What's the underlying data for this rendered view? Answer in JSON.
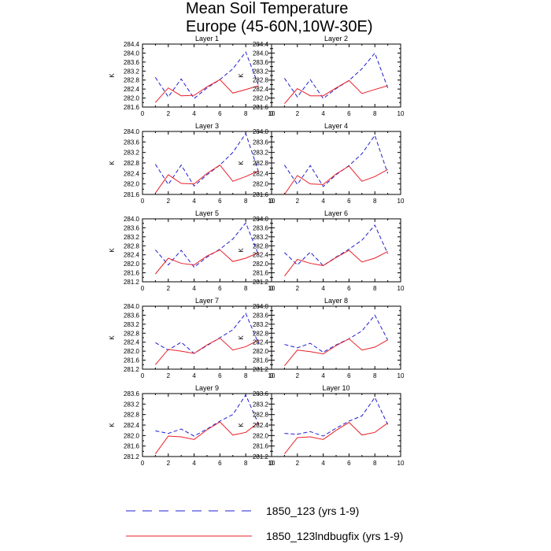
{
  "chart_data": {
    "type": "line",
    "title_line1": "Mean Soil Temperature",
    "title_line2": "Europe (45-60N,10W-30E)",
    "ylabel": "K",
    "xlim": [
      0,
      10
    ],
    "xticks": [
      "0",
      "2",
      "4",
      "6",
      "8",
      "10"
    ],
    "x": [
      1,
      2,
      3,
      4,
      5,
      6,
      7,
      8,
      9
    ],
    "legend": [
      {
        "name": "1850_123 (yrs 1-9)",
        "color": "#1f1fd0",
        "style": "dashed"
      },
      {
        "name": "1850_123lndbugfix (yrs 1-9)",
        "color": "#e8202a",
        "style": "solid"
      }
    ],
    "panels": [
      {
        "title": "Layer 1",
        "ylim": [
          281.6,
          284.4
        ],
        "yticks": [
          "281.6",
          "282.0",
          "282.4",
          "282.8",
          "283.2",
          "283.6",
          "284.0",
          "284.4"
        ],
        "series": [
          {
            "name": "1850_123 (yrs 1-9)",
            "values": [
              282.92,
              282.05,
              282.85,
              281.98,
              282.45,
              282.82,
              283.3,
              284.05,
              282.55
            ]
          },
          {
            "name": "1850_123lndbugfix (yrs 1-9)",
            "values": [
              281.8,
              282.45,
              282.1,
              282.12,
              282.5,
              282.82,
              282.22,
              282.38,
              282.55
            ]
          }
        ]
      },
      {
        "title": "Layer 2",
        "ylim": [
          281.6,
          284.4
        ],
        "yticks": [
          "281.6",
          "282.0",
          "282.4",
          "282.8",
          "283.2",
          "283.6",
          "284.0",
          "284.4"
        ],
        "series": [
          {
            "name": "1850_123 (yrs 1-9)",
            "values": [
              282.88,
              282.05,
              282.82,
              281.98,
              282.42,
              282.78,
              283.3,
              284.0,
              282.45
            ]
          },
          {
            "name": "1850_123lndbugfix (yrs 1-9)",
            "values": [
              281.75,
              282.42,
              282.1,
              282.1,
              282.45,
              282.78,
              282.2,
              282.38,
              282.55
            ]
          }
        ]
      },
      {
        "title": "Layer 3",
        "ylim": [
          281.6,
          284.0
        ],
        "yticks": [
          "281.6",
          "282.0",
          "282.4",
          "282.8",
          "283.2",
          "283.6",
          "284.0"
        ],
        "series": [
          {
            "name": "1850_123 (yrs 1-9)",
            "values": [
              282.75,
              281.98,
              282.72,
              281.92,
              282.35,
              282.72,
              283.2,
              283.92,
              282.45
            ]
          },
          {
            "name": "1850_123lndbugfix (yrs 1-9)",
            "values": [
              281.65,
              282.35,
              282.02,
              282.0,
              282.4,
              282.72,
              282.1,
              282.28,
              282.5
            ]
          }
        ]
      },
      {
        "title": "Layer 4",
        "ylim": [
          281.6,
          284.0
        ],
        "yticks": [
          "281.6",
          "282.0",
          "282.4",
          "282.8",
          "283.2",
          "283.6",
          "284.0"
        ],
        "series": [
          {
            "name": "1850_123 (yrs 1-9)",
            "values": [
              282.72,
              281.98,
              282.7,
              281.9,
              282.35,
              282.7,
              283.15,
              283.85,
              282.4
            ]
          },
          {
            "name": "1850_123lndbugfix (yrs 1-9)",
            "values": [
              281.6,
              282.32,
              282.0,
              281.98,
              282.38,
              282.68,
              282.1,
              282.28,
              282.55
            ]
          }
        ]
      },
      {
        "title": "Layer 5",
        "ylim": [
          281.2,
          284.0
        ],
        "yticks": [
          "281.2",
          "281.6",
          "282.0",
          "282.4",
          "282.8",
          "283.2",
          "283.6",
          "284.0"
        ],
        "series": [
          {
            "name": "1850_123 (yrs 1-9)",
            "values": [
              282.62,
              281.95,
              282.6,
              281.85,
              282.3,
              282.65,
              283.1,
              283.82,
              282.38
            ]
          },
          {
            "name": "1850_123lndbugfix (yrs 1-9)",
            "values": [
              281.55,
              282.25,
              282.02,
              281.95,
              282.35,
              282.62,
              282.1,
              282.25,
              282.5
            ]
          }
        ]
      },
      {
        "title": "Layer 6",
        "ylim": [
          281.2,
          284.0
        ],
        "yticks": [
          "281.2",
          "281.6",
          "282.0",
          "282.4",
          "282.8",
          "283.2",
          "283.6",
          "284.0"
        ],
        "series": [
          {
            "name": "1850_123 (yrs 1-9)",
            "values": [
              282.5,
              281.95,
              282.52,
              281.92,
              282.3,
              282.65,
              283.05,
              283.72,
              282.45
            ]
          },
          {
            "name": "1850_123lndbugfix (yrs 1-9)",
            "values": [
              281.45,
              282.2,
              282.02,
              281.92,
              282.28,
              282.6,
              282.08,
              282.25,
              282.55
            ]
          }
        ]
      },
      {
        "title": "Layer 7",
        "ylim": [
          281.2,
          284.0
        ],
        "yticks": [
          "281.2",
          "281.6",
          "282.0",
          "282.4",
          "282.8",
          "283.2",
          "283.6",
          "284.0"
        ],
        "series": [
          {
            "name": "1850_123 (yrs 1-9)",
            "values": [
              282.38,
              282.05,
              282.4,
              281.9,
              282.25,
              282.6,
              282.95,
              283.68,
              282.32
            ]
          },
          {
            "name": "1850_123lndbugfix (yrs 1-9)",
            "values": [
              281.4,
              282.08,
              282.0,
              281.9,
              282.28,
              282.58,
              282.05,
              282.2,
              282.5
            ]
          }
        ]
      },
      {
        "title": "Layer 8",
        "ylim": [
          281.2,
          284.0
        ],
        "yticks": [
          "281.2",
          "281.6",
          "282.0",
          "282.4",
          "282.8",
          "283.2",
          "283.6",
          "284.0"
        ],
        "series": [
          {
            "name": "1850_123 (yrs 1-9)",
            "values": [
              282.3,
              282.15,
              282.35,
              281.95,
              282.28,
              282.55,
              282.9,
              283.6,
              282.5
            ]
          },
          {
            "name": "1850_123lndbugfix (yrs 1-9)",
            "values": [
              281.35,
              282.05,
              281.98,
              281.88,
              282.25,
              282.55,
              282.05,
              282.18,
              282.5
            ]
          }
        ]
      },
      {
        "title": "Layer 9",
        "ylim": [
          281.2,
          283.6
        ],
        "yticks": [
          "281.2",
          "281.6",
          "282.0",
          "282.4",
          "282.8",
          "283.2",
          "283.6"
        ],
        "series": [
          {
            "name": "1850_123 (yrs 1-9)",
            "values": [
              282.18,
              282.08,
              282.25,
              281.98,
              282.25,
              282.55,
              282.8,
              283.55,
              282.42
            ]
          },
          {
            "name": "1850_123lndbugfix (yrs 1-9)",
            "values": [
              281.3,
              281.98,
              281.95,
              281.85,
              282.22,
              282.52,
              282.02,
              282.12,
              282.5
            ]
          }
        ]
      },
      {
        "title": "Layer 10",
        "ylim": [
          281.2,
          283.6
        ],
        "yticks": [
          "281.2",
          "281.6",
          "282.0",
          "282.4",
          "282.8",
          "283.2",
          "283.6"
        ],
        "series": [
          {
            "name": "1850_123 (yrs 1-9)",
            "values": [
              282.08,
              282.05,
              282.15,
              281.98,
              282.28,
              282.55,
              282.75,
              283.45,
              282.42
            ]
          },
          {
            "name": "1850_123lndbugfix (yrs 1-9)",
            "values": [
              281.3,
              281.92,
              281.95,
              281.85,
              282.2,
              282.5,
              282.02,
              282.12,
              282.48
            ]
          }
        ]
      }
    ]
  }
}
